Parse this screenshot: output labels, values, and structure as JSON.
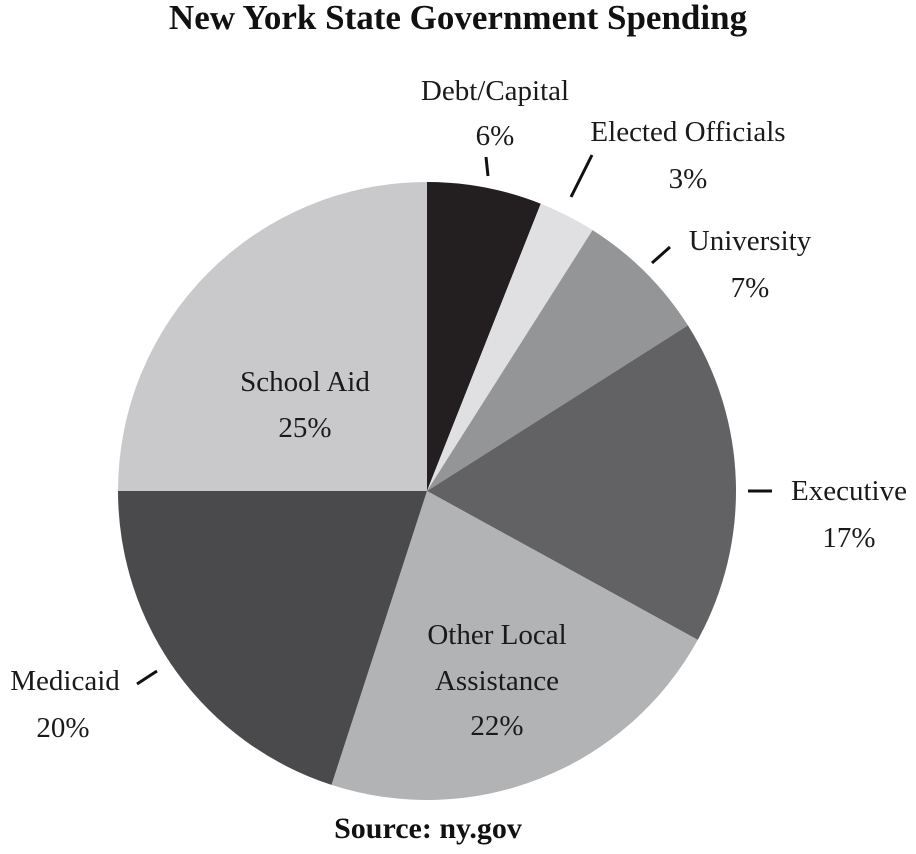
{
  "chart_data": {
    "type": "pie",
    "title": "New York State Government Spending",
    "source": "Source: ny.gov",
    "slices": [
      {
        "label": "Debt/Capital",
        "value": 6,
        "value_label": "6%",
        "color": "#231f20"
      },
      {
        "label": "Elected Officials",
        "value": 3,
        "value_label": "3%",
        "color": "#e0e0e2"
      },
      {
        "label": "University",
        "value": 7,
        "value_label": "7%",
        "color": "#949597"
      },
      {
        "label": "Executive",
        "value": 17,
        "value_label": "17%",
        "color": "#626264"
      },
      {
        "label": "Other Local Assistance",
        "value": 22,
        "value_label": "22%",
        "color": "#b2b3b5"
      },
      {
        "label": "Medicaid",
        "value": 20,
        "value_label": "20%",
        "color": "#4a4a4c"
      },
      {
        "label": "School Aid",
        "value": 25,
        "value_label": "25%",
        "color": "#c9c9cb"
      }
    ]
  }
}
